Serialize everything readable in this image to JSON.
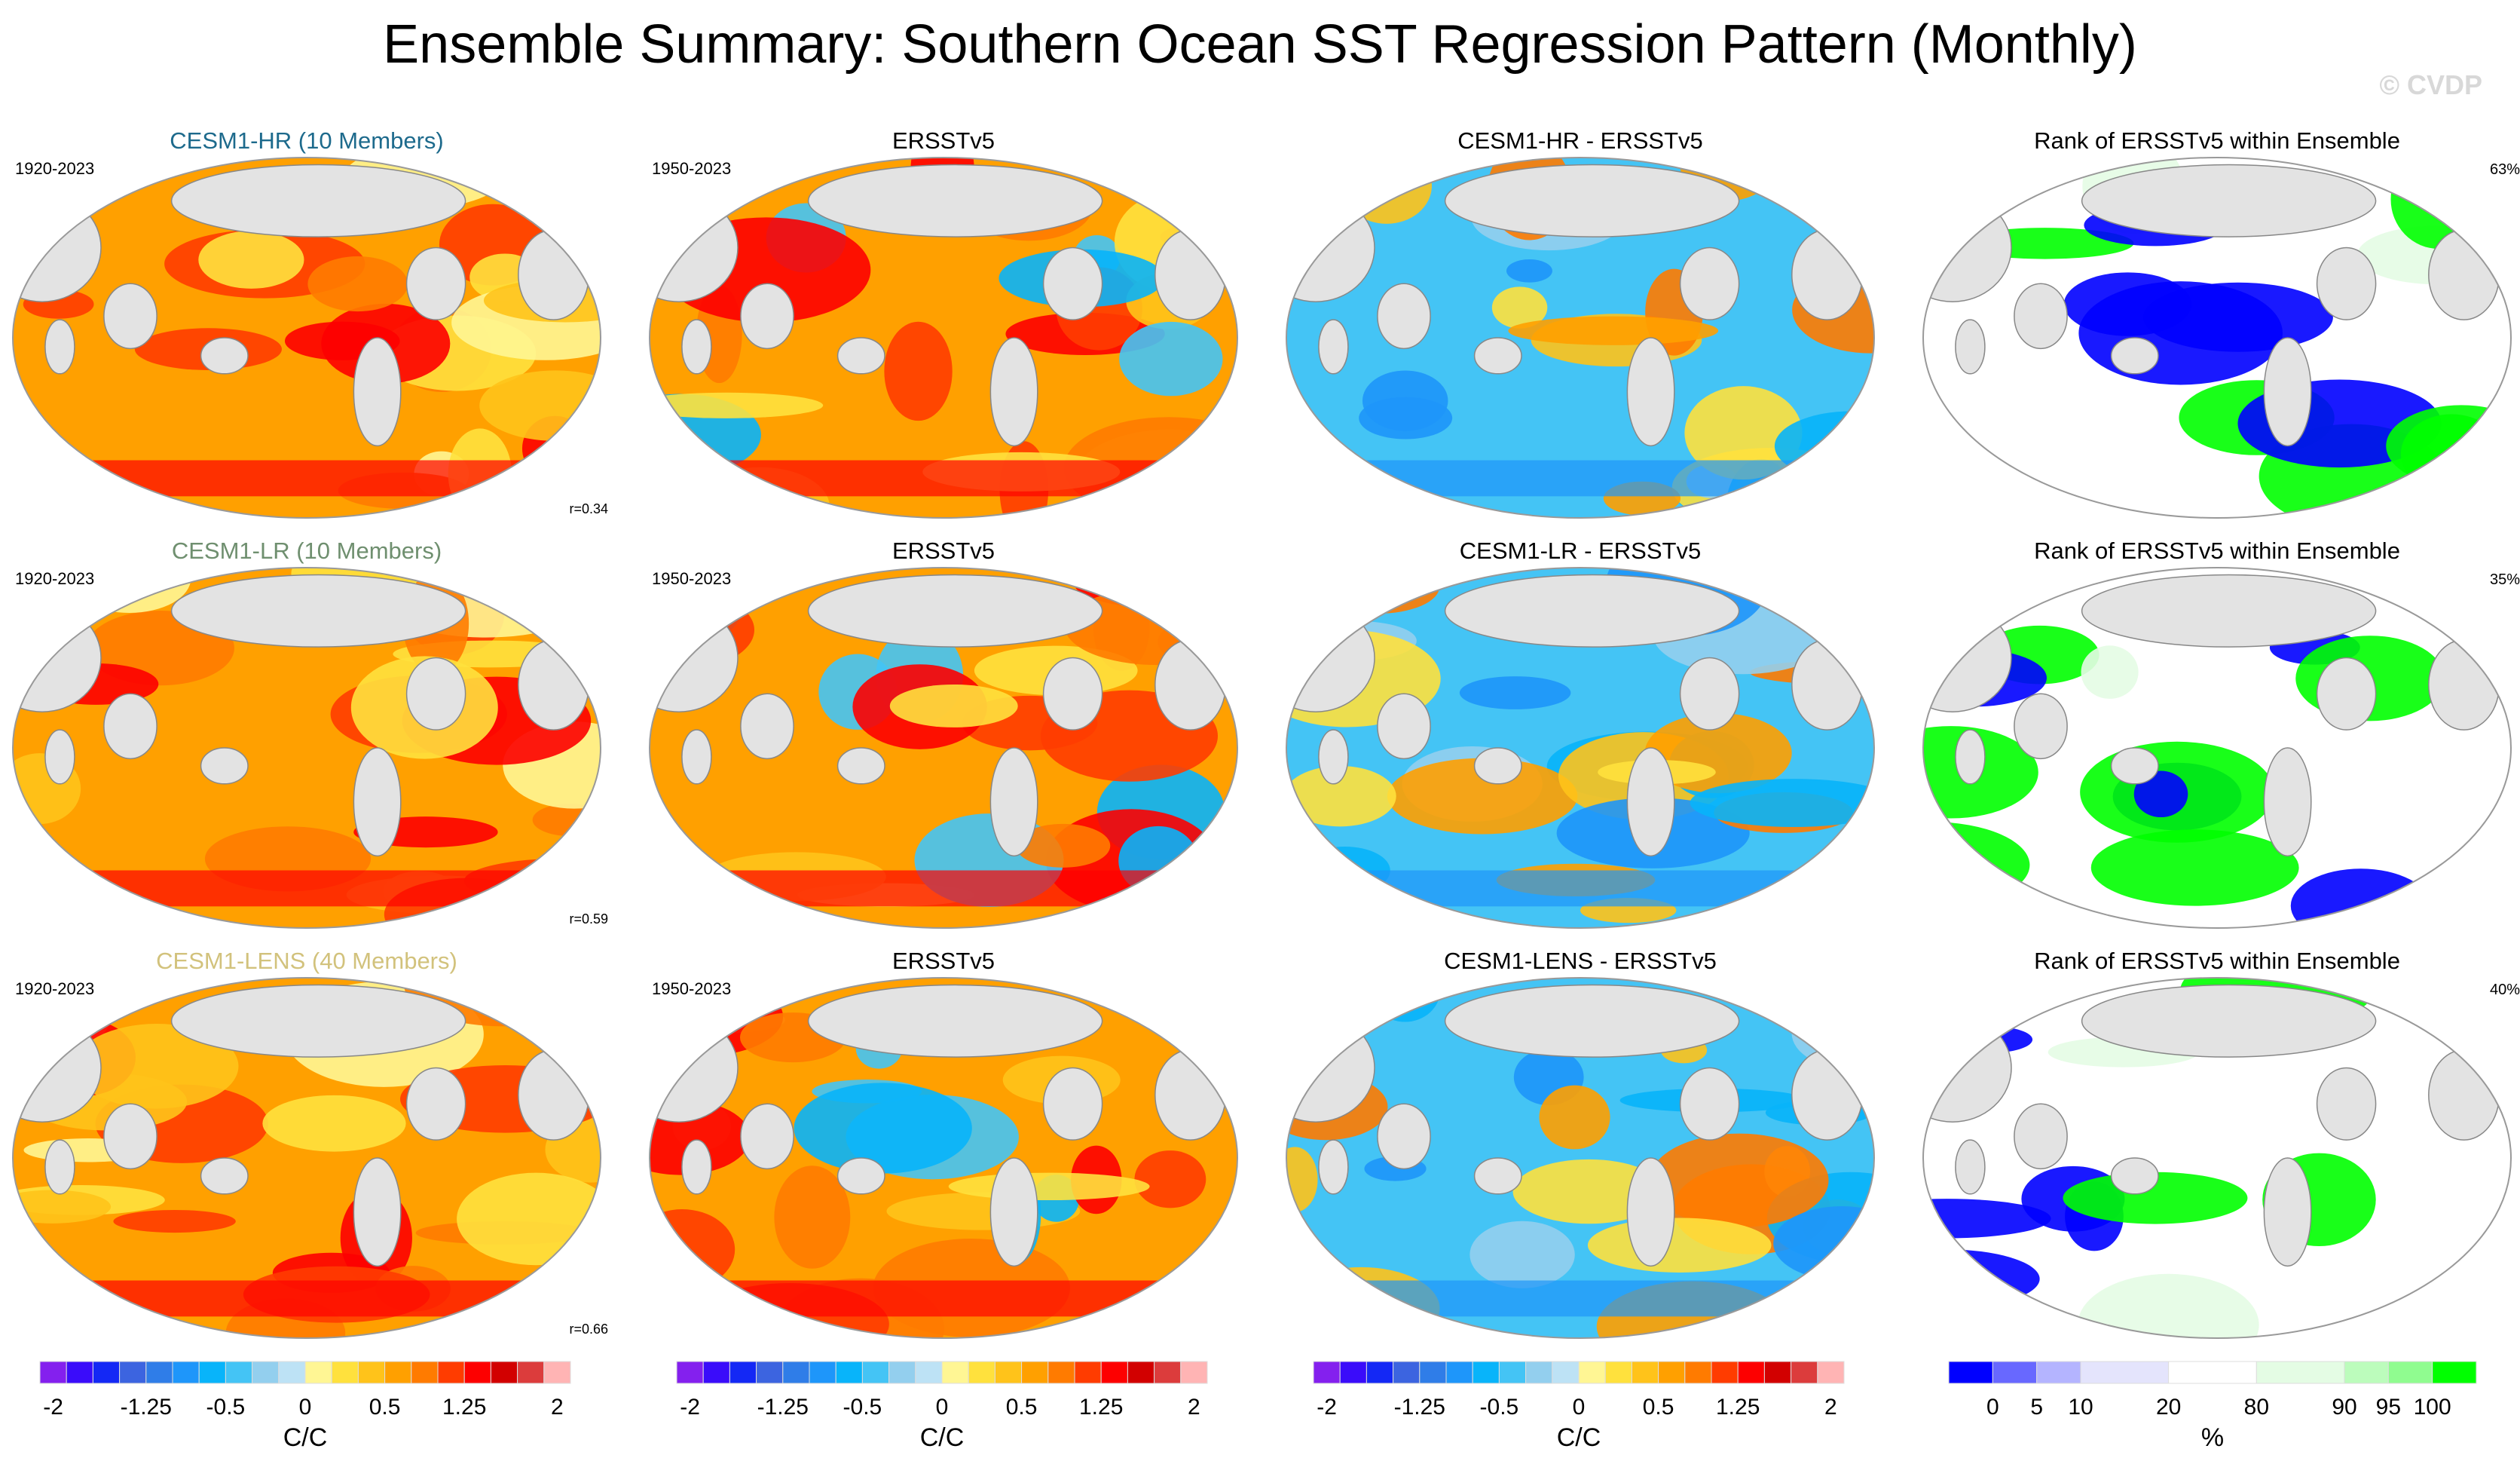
{
  "title": "Ensemble Summary: Southern Ocean SST Regression Pattern (Monthly)",
  "watermark": "© CVDP",
  "colors": {
    "model_hr_title": "#1d6a8c",
    "model_lr_title": "#6f8f6f",
    "model_lens_title": "#d2c27c",
    "land": "#e3e3e3"
  },
  "rows": [
    {
      "panels": [
        {
          "title": "CESM1-HR (10 Members)",
          "title_color_key": "model_hr_title",
          "left_label": "1920-2023",
          "right_label": "r=0.34",
          "kind": "model"
        },
        {
          "title": "ERSSTv5",
          "left_label": "1950-2023",
          "right_label": "",
          "kind": "obs"
        },
        {
          "title": "CESM1-HR - ERSSTv5",
          "left_label": "",
          "right_label": "",
          "kind": "diff"
        },
        {
          "title": "Rank of ERSSTv5 within Ensemble",
          "left_label": "",
          "right_label": "63%",
          "kind": "rank"
        }
      ]
    },
    {
      "panels": [
        {
          "title": "CESM1-LR (10 Members)",
          "title_color_key": "model_lr_title",
          "left_label": "1920-2023",
          "right_label": "r=0.59",
          "kind": "model"
        },
        {
          "title": "ERSSTv5",
          "left_label": "1950-2023",
          "right_label": "",
          "kind": "obs"
        },
        {
          "title": "CESM1-LR - ERSSTv5",
          "left_label": "",
          "right_label": "",
          "kind": "diff"
        },
        {
          "title": "Rank of ERSSTv5 within Ensemble",
          "left_label": "",
          "right_label": "35%",
          "kind": "rank"
        }
      ]
    },
    {
      "panels": [
        {
          "title": "CESM1-LENS (40 Members)",
          "title_color_key": "model_lens_title",
          "left_label": "1920-2023",
          "right_label": "r=0.66",
          "kind": "model"
        },
        {
          "title": "ERSSTv5",
          "left_label": "1950-2023",
          "right_label": "",
          "kind": "obs"
        },
        {
          "title": "CESM1-LENS - ERSSTv5",
          "left_label": "",
          "right_label": "",
          "kind": "diff"
        },
        {
          "title": "Rank of ERSSTv5 within Ensemble",
          "left_label": "",
          "right_label": "40%",
          "kind": "rank"
        }
      ]
    }
  ],
  "colorbars": [
    {
      "unit": "C/C",
      "ticks": [
        "-2",
        "-1.25",
        "-0.5",
        "0",
        "0.5",
        "1.25",
        "2"
      ],
      "colors": [
        "#8420ee",
        "#3a0cfa",
        "#1428f5",
        "#3c64e0",
        "#2f7de8",
        "#1e96fa",
        "#08b4fa",
        "#44c4f5",
        "#93cfee",
        "#bde2f5",
        "#fff694",
        "#ffe13d",
        "#ffc31a",
        "#ffa000",
        "#ff7b00",
        "#ff3c00",
        "#fd0000",
        "#d20000",
        "#dc3c3c",
        "#ffb4b4"
      ]
    },
    {
      "unit": "C/C",
      "ticks": [
        "-2",
        "-1.25",
        "-0.5",
        "0",
        "0.5",
        "1.25",
        "2"
      ],
      "colors": [
        "#8420ee",
        "#3a0cfa",
        "#1428f5",
        "#3c64e0",
        "#2f7de8",
        "#1e96fa",
        "#08b4fa",
        "#44c4f5",
        "#93cfee",
        "#bde2f5",
        "#fff694",
        "#ffe13d",
        "#ffc31a",
        "#ffa000",
        "#ff7b00",
        "#ff3c00",
        "#fd0000",
        "#d20000",
        "#dc3c3c",
        "#ffb4b4"
      ]
    },
    {
      "unit": "C/C",
      "ticks": [
        "-2",
        "-1.25",
        "-0.5",
        "0",
        "0.5",
        "1.25",
        "2"
      ],
      "colors": [
        "#8420ee",
        "#3a0cfa",
        "#1428f5",
        "#3c64e0",
        "#2f7de8",
        "#1e96fa",
        "#08b4fa",
        "#44c4f5",
        "#93cfee",
        "#bde2f5",
        "#fff694",
        "#ffe13d",
        "#ffc31a",
        "#ffa000",
        "#ff7b00",
        "#ff3c00",
        "#fd0000",
        "#d20000",
        "#dc3c3c",
        "#ffb4b4"
      ]
    },
    {
      "unit": "%",
      "ticks": [
        "0",
        "5",
        "10",
        "20",
        "80",
        "90",
        "95",
        "100"
      ],
      "colors": [
        "#0000ff",
        "#6868ff",
        "#b4b4ff",
        "#e4e4fc",
        "#ffffff",
        "#e4fce4",
        "#bcfcbc",
        "#90fc90",
        "#00ff00"
      ]
    }
  ]
}
